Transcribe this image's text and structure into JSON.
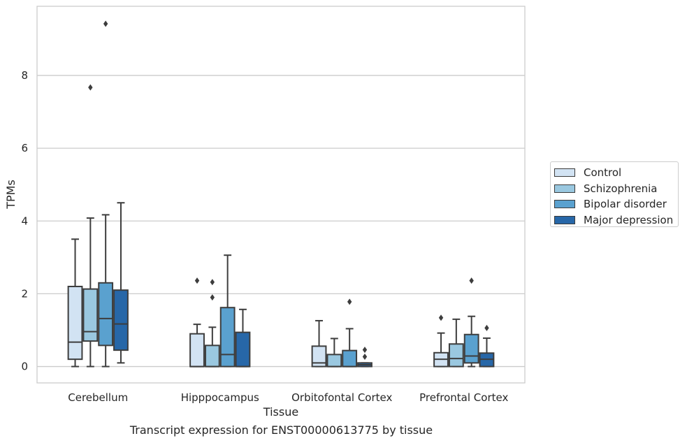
{
  "caption": "Transcript expression for ENST00000613775 by tissue",
  "chart_data": {
    "type": "box",
    "xlabel": "Tissue",
    "ylabel": "TPMs",
    "ylim": [
      -0.45,
      9.9
    ],
    "yticks": [
      0,
      2,
      4,
      6,
      8
    ],
    "grid": true,
    "legend_position": "right",
    "categories": [
      "Cerebellum",
      "Hipppocampus",
      "Orbitofontal Cortex",
      "Prefrontal Cortex"
    ],
    "series": [
      {
        "name": "Control",
        "color": "#d2e3f3",
        "boxes": [
          {
            "whisker_low": 0,
            "q1": 0.2,
            "median": 0.67,
            "q3": 2.2,
            "whisker_high": 3.5,
            "outliers": []
          },
          {
            "whisker_low": 0,
            "q1": 0,
            "median": 0,
            "q3": 0.9,
            "whisker_high": 1.16,
            "outliers": [
              2.36
            ]
          },
          {
            "whisker_low": 0,
            "q1": 0,
            "median": 0.1,
            "q3": 0.56,
            "whisker_high": 1.26,
            "outliers": []
          },
          {
            "whisker_low": 0,
            "q1": 0,
            "median": 0.2,
            "q3": 0.38,
            "whisker_high": 0.92,
            "outliers": [
              1.34
            ]
          }
        ]
      },
      {
        "name": "Schizophrenia",
        "color": "#9ac8e0",
        "boxes": [
          {
            "whisker_low": 0,
            "q1": 0.7,
            "median": 0.96,
            "q3": 2.13,
            "whisker_high": 4.08,
            "outliers": [
              7.67
            ]
          },
          {
            "whisker_low": 0,
            "q1": 0,
            "median": 0,
            "q3": 0.58,
            "whisker_high": 1.08,
            "outliers": [
              1.9,
              2.32
            ]
          },
          {
            "whisker_low": 0,
            "q1": 0,
            "median": 0,
            "q3": 0.33,
            "whisker_high": 0.77,
            "outliers": []
          },
          {
            "whisker_low": 0,
            "q1": 0,
            "median": 0.22,
            "q3": 0.62,
            "whisker_high": 1.3,
            "outliers": []
          }
        ]
      },
      {
        "name": "Bipolar disorder",
        "color": "#5aa1cf",
        "boxes": [
          {
            "whisker_low": 0,
            "q1": 0.58,
            "median": 1.32,
            "q3": 2.3,
            "whisker_high": 4.17,
            "outliers": [
              9.42
            ]
          },
          {
            "whisker_low": 0,
            "q1": 0,
            "median": 0.33,
            "q3": 1.62,
            "whisker_high": 3.06,
            "outliers": []
          },
          {
            "whisker_low": 0,
            "q1": 0,
            "median": 0,
            "q3": 0.44,
            "whisker_high": 1.04,
            "outliers": [
              1.78
            ]
          },
          {
            "whisker_low": 0,
            "q1": 0.1,
            "median": 0.29,
            "q3": 0.88,
            "whisker_high": 1.38,
            "outliers": [
              2.36
            ]
          }
        ]
      },
      {
        "name": "Major depression",
        "color": "#2767a8",
        "boxes": [
          {
            "whisker_low": 0.1,
            "q1": 0.45,
            "median": 1.17,
            "q3": 2.1,
            "whisker_high": 4.5,
            "outliers": []
          },
          {
            "whisker_low": 0,
            "q1": 0,
            "median": 0,
            "q3": 0.94,
            "whisker_high": 1.57,
            "outliers": []
          },
          {
            "whisker_low": 0,
            "q1": 0,
            "median": 0.05,
            "q3": 0.1,
            "whisker_high": 0.1,
            "outliers": [
              0.27,
              0.46
            ]
          },
          {
            "whisker_low": 0,
            "q1": 0,
            "median": 0.2,
            "q3": 0.37,
            "whisker_high": 0.78,
            "outliers": [
              1.06
            ]
          }
        ]
      }
    ]
  }
}
